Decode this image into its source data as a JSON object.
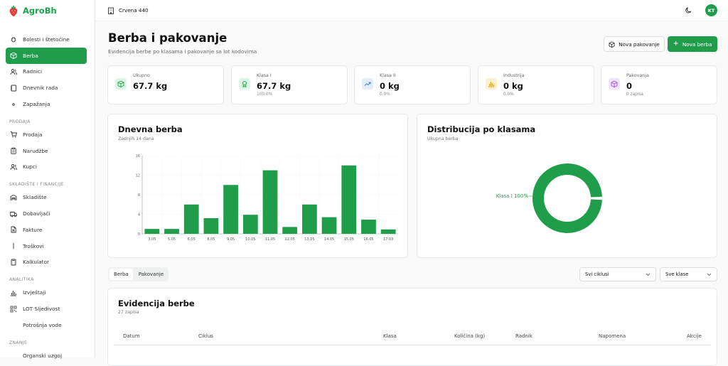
{
  "app": {
    "name": "AgroBh",
    "user_initials": "KT"
  },
  "topbar": {
    "farm_name": "Crvena 440"
  },
  "sidebar": {
    "sections": [
      {
        "label": "",
        "items": [
          {
            "label": "Bolesti i štetočine",
            "icon": "bug-icon"
          },
          {
            "label": "Berba",
            "icon": "box-icon",
            "active": true
          },
          {
            "label": "Radnici",
            "icon": "users-icon"
          },
          {
            "label": "Dnevnik rada",
            "icon": "notebook-icon"
          },
          {
            "label": "Zapažanja",
            "icon": "eye-icon"
          }
        ]
      },
      {
        "label": "PRODAJA",
        "items": [
          {
            "label": "Prodaja",
            "icon": "cart-icon"
          },
          {
            "label": "Narudžbe",
            "icon": "clipboard-icon"
          },
          {
            "label": "Kupci",
            "icon": "users-icon"
          }
        ]
      },
      {
        "label": "SKLADIŠTE I FINANCIJE",
        "items": [
          {
            "label": "Skladište",
            "icon": "warehouse-icon"
          },
          {
            "label": "Dobavljači",
            "icon": "truck-icon"
          },
          {
            "label": "Fakture",
            "icon": "file-icon"
          },
          {
            "label": "Troškovi",
            "icon": "dollar-icon"
          },
          {
            "label": "Kalkulator",
            "icon": "calculator-icon"
          }
        ]
      },
      {
        "label": "ANALITIKA",
        "items": [
          {
            "label": "Izvještaji",
            "icon": "bar-chart-icon"
          },
          {
            "label": "LOT Sljedivost",
            "icon": "qr-icon"
          },
          {
            "label": "Potrošnja vode",
            "icon": "droplet-icon"
          }
        ]
      },
      {
        "label": "ZNANJE",
        "items": [
          {
            "label": "Organski uzgoj",
            "icon": "book-icon"
          }
        ]
      }
    ]
  },
  "page": {
    "title": "Berba i pakovanje",
    "subtitle": "Evidencija berbe po klasama i pakovanje sa lot kodovima"
  },
  "buttons": {
    "new_packaging": "Nova pakovanje",
    "new_harvest": "Nova berba"
  },
  "stats": [
    {
      "label": "Ukupno",
      "value": "67.7 kg",
      "sub": "",
      "color": "#dcf5e4",
      "icon_color": "#1f9d4a",
      "icon": "box-icon"
    },
    {
      "label": "Klasa I",
      "value": "67.7 kg",
      "sub": "100.0%",
      "color": "#dcf5e4",
      "icon_color": "#1f9d4a",
      "icon": "award-icon"
    },
    {
      "label": "Klasa II",
      "value": "0 kg",
      "sub": "0.0%",
      "color": "#e2ecfa",
      "icon_color": "#3b6fd8",
      "icon": "trend-icon"
    },
    {
      "label": "Industrija",
      "value": "0 kg",
      "sub": "0.0%",
      "color": "#fbf0cf",
      "icon_color": "#d59a13",
      "icon": "bar-chart-icon"
    },
    {
      "label": "Pakovanja",
      "value": "0",
      "sub": "0 zapisa",
      "color": "#f0e3fb",
      "icon_color": "#9b4fd6",
      "icon": "package-icon"
    }
  ],
  "daily": {
    "title": "Dnevna berba",
    "subtitle": "Zadnjih 14 dana"
  },
  "distribution": {
    "title": "Distribucija po klasama",
    "subtitle": "Ukupna berba",
    "label": "Klasa I 100%"
  },
  "chart_data": [
    {
      "type": "bar",
      "title": "Dnevna berba",
      "xlabel": "",
      "ylabel": "",
      "categories": [
        "3.05",
        "5.05",
        "6.05",
        "8.05",
        "9.05",
        "10.05",
        "11.05",
        "12.05",
        "13.05",
        "14.05",
        "15.05",
        "16.05",
        "17.03"
      ],
      "values": [
        1,
        1,
        6,
        3.2,
        10,
        3.9,
        13,
        1.4,
        6,
        3.4,
        14,
        2.9,
        0.9
      ],
      "ylim": [
        0,
        16
      ],
      "yticks": [
        0,
        4,
        8,
        12,
        16
      ],
      "grid": true,
      "color": "#1f9d4a"
    },
    {
      "type": "pie",
      "title": "Distribucija po klasama",
      "labels": [
        "Klasa I"
      ],
      "values": [
        100
      ],
      "color": "#1f9d4a"
    }
  ],
  "tabs": [
    "Berba",
    "Pakovanje"
  ],
  "filters": {
    "cycle": "Svi ciklusi",
    "class": "Sve klase"
  },
  "table": {
    "title": "Evidencija berbe",
    "subtitle": "27 zapisa",
    "headers": [
      "Datum",
      "Ciklus",
      "Klasa",
      "Količina (kg)",
      "Radnik",
      "Napomena",
      "Akcije"
    ]
  }
}
